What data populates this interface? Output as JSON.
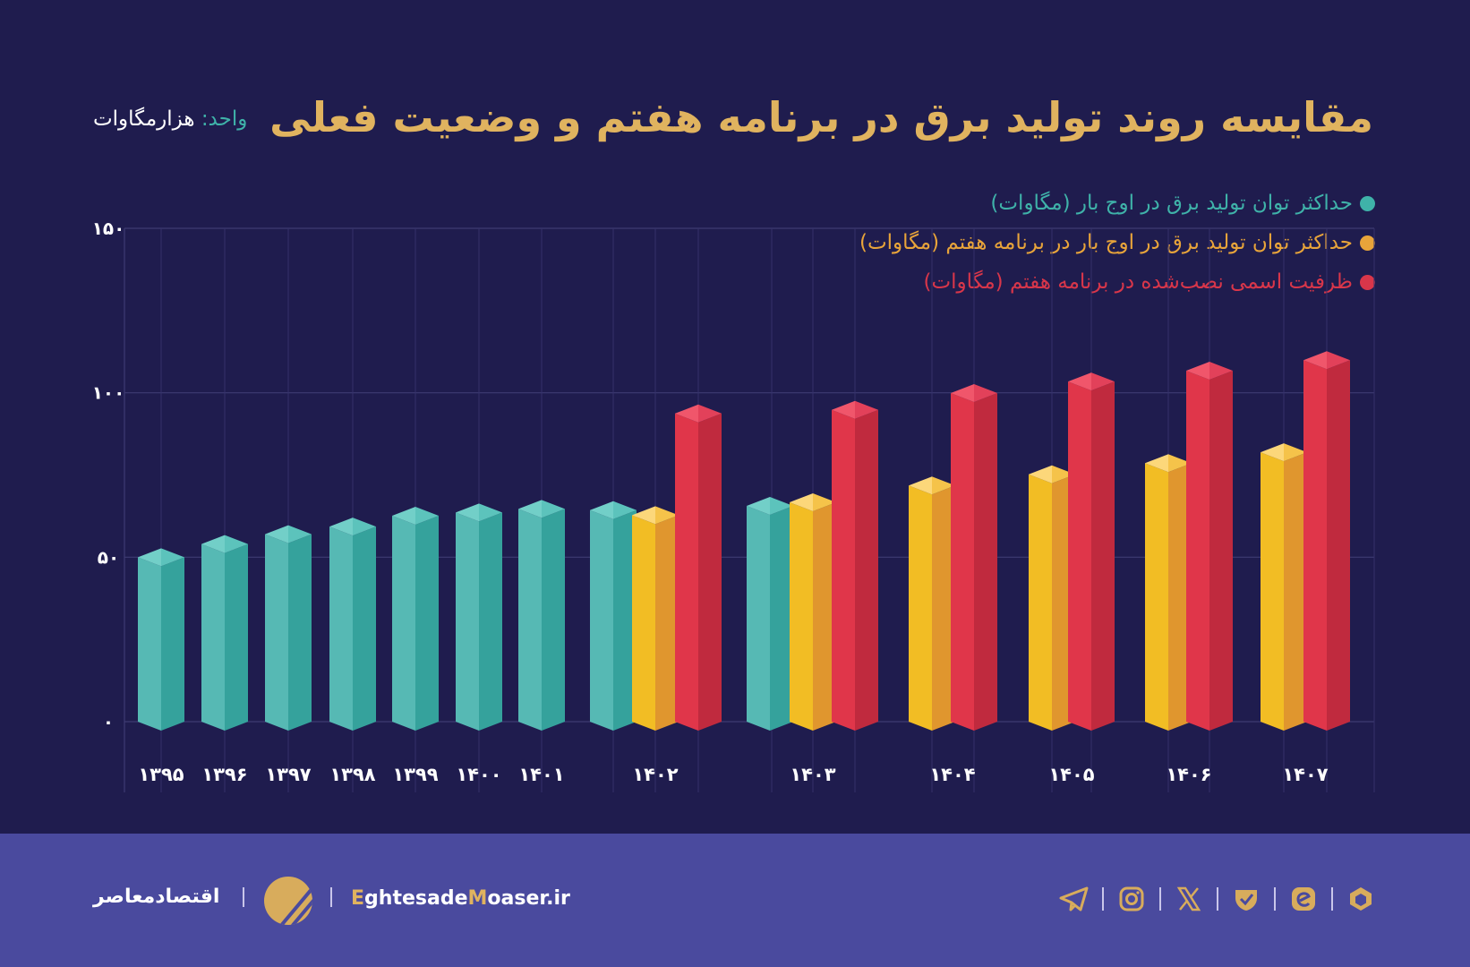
{
  "title": "مقایسه روند تولید برق در برنامه هفتم و وضعیت فعلی",
  "unit": {
    "label": "واحد:",
    "value": "هزارمگاوات"
  },
  "colors": {
    "background": "#1f1c4e",
    "footer": "#4a4a9e",
    "title": "#e0b35f"
  },
  "chart_data": {
    "type": "bar",
    "style": "3d-prism grouped bars",
    "title": "مقایسه روند تولید برق در برنامه هفتم و وضعیت فعلی",
    "ylabel": "واحد: هزارمگاوات",
    "ylim": [
      0,
      150
    ],
    "yticks": [
      0,
      50,
      100,
      150
    ],
    "ytick_labels": [
      "۰",
      "۵۰",
      "۱۰۰",
      "۱۵۰"
    ],
    "grid": true,
    "legend_position": "top-right",
    "categories": [
      "۱۳۹۵",
      "۱۳۹۶",
      "۱۳۹۷",
      "۱۳۹۸",
      "۱۳۹۹",
      "۱۴۰۰",
      "۱۴۰۱",
      "۱۴۰۲",
      "۱۴۰۳",
      "۱۴۰۴",
      "۱۴۰۵",
      "۱۴۰۶",
      "۱۴۰۷"
    ],
    "series": [
      {
        "name": "حداکثر توان تولید برق در اوج بار (مگاوات)",
        "color": "#3fb2a9",
        "values": [
          50.0,
          54.0,
          57.0,
          59.3,
          62.6,
          63.6,
          64.7,
          64.3,
          65.6,
          null,
          null,
          null,
          null
        ]
      },
      {
        "name": "حداکثر توان تولید برق در اوج بار در برنامه هفتم (مگاوات)",
        "color": "#e8a43a",
        "values": [
          null,
          null,
          null,
          null,
          null,
          null,
          null,
          62.8,
          66.7,
          71.8,
          75.2,
          78.6,
          81.9
        ]
      },
      {
        "name": "ظرفیت اسمی نصب‌شده در برنامه هفتم (مگاوات)",
        "color": "#d8364a",
        "values": [
          null,
          null,
          null,
          null,
          null,
          null,
          null,
          93.7,
          94.8,
          99.9,
          103.4,
          106.7,
          109.9
        ]
      }
    ]
  },
  "footer": {
    "brand": "اقتصادمعاصر",
    "site_prefix_accent": "E",
    "site_part1": "ghtesade",
    "site_accent2": "M",
    "site_part2": "oaser.ir",
    "social_icons": [
      "telegram-icon",
      "instagram-icon",
      "x-icon",
      "verified-icon",
      "e-icon",
      "hexagon-icon"
    ]
  }
}
